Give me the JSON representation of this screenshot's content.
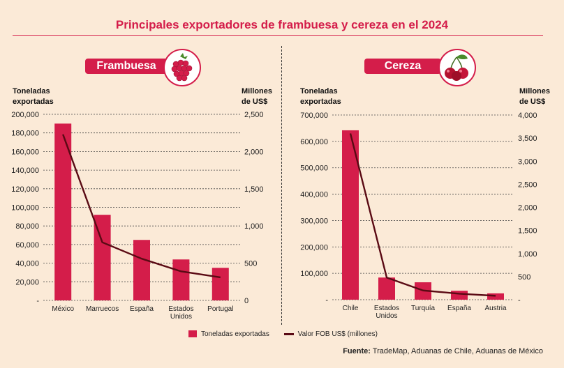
{
  "header": {
    "title": "Principales exportadores de frambuesa y cereza en el 2024"
  },
  "colors": {
    "bar": "#d41d4a",
    "line": "#5a0a14",
    "accent": "#d41d4a"
  },
  "legend": {
    "bars": "Toneladas exportadas",
    "line": "Valor FOB US$ (millones)"
  },
  "source": {
    "label": "Fuente:",
    "text": "TradeMap, Aduanas de Chile, Aduanas de México"
  },
  "panels": [
    {
      "name": "Frambuesa",
      "left_axis_title": [
        "Toneladas",
        "exportadas"
      ],
      "right_axis_title": [
        "Millones",
        "de US$"
      ],
      "icon": "raspberry-icon"
    },
    {
      "name": "Cereza",
      "left_axis_title": [
        "Toneladas",
        "exportadas"
      ],
      "right_axis_title": [
        "Millones",
        "de US$"
      ],
      "icon": "cherry-icon"
    }
  ],
  "chart_data": [
    {
      "type": "bar",
      "title": "Frambuesa",
      "categories": [
        [
          "México"
        ],
        [
          "Marruecos"
        ],
        [
          "España"
        ],
        [
          "Estados",
          "Unidos"
        ],
        [
          "Portugal"
        ]
      ],
      "series": [
        {
          "name": "Toneladas exportadas",
          "axis": "left",
          "type": "bar",
          "values": [
            190000,
            92000,
            65000,
            44000,
            35000
          ]
        },
        {
          "name": "Valor FOB US$ (millones)",
          "axis": "right",
          "type": "line",
          "values": [
            2230,
            780,
            560,
            390,
            310
          ]
        }
      ],
      "ylabel": "Toneladas exportadas",
      "y2label": "Millones de US$",
      "ylim": [
        0,
        200000
      ],
      "y2lim": [
        0,
        2500
      ],
      "yticks": [
        0,
        20000,
        40000,
        60000,
        80000,
        100000,
        120000,
        140000,
        160000,
        180000,
        200000
      ],
      "yticklabels": [
        "-",
        "20,000",
        "40,000",
        "60,000",
        "80,000",
        "100,000",
        "120,000",
        "140,000",
        "160,000",
        "180,000",
        "200,000"
      ],
      "y2ticks": [
        0,
        500,
        1000,
        1500,
        2000,
        2500
      ],
      "y2ticklabels": [
        "0",
        "500",
        "1,000",
        "1,500",
        "2,000",
        "2,500"
      ],
      "grid": true
    },
    {
      "type": "bar",
      "title": "Cereza",
      "categories": [
        [
          "Chile"
        ],
        [
          "Estados",
          "Unidos"
        ],
        [
          "Turquía"
        ],
        [
          "España"
        ],
        [
          "Austria"
        ]
      ],
      "series": [
        {
          "name": "Toneladas exportadas",
          "axis": "left",
          "type": "bar",
          "values": [
            642000,
            84000,
            66000,
            34000,
            24000
          ]
        },
        {
          "name": "Valor FOB US$ (millones)",
          "axis": "right",
          "type": "line",
          "values": [
            3600,
            480,
            200,
            130,
            85
          ]
        }
      ],
      "ylabel": "Toneladas exportadas",
      "y2label": "Millones de US$",
      "ylim": [
        0,
        700000
      ],
      "y2lim": [
        0,
        4000
      ],
      "yticks": [
        0,
        100000,
        200000,
        300000,
        400000,
        500000,
        600000,
        700000
      ],
      "yticklabels": [
        "-",
        "100,000",
        "200,000",
        "300,000",
        "400,000",
        "500,000",
        "600,000",
        "700,000"
      ],
      "y2ticks": [
        0,
        500,
        1000,
        1500,
        2000,
        2500,
        3000,
        3500,
        4000
      ],
      "y2ticklabels": [
        "-",
        "500",
        "1,000",
        "1,500",
        "2,000",
        "2,500",
        "3,000",
        "3,500",
        "4,000"
      ],
      "grid": true
    }
  ]
}
